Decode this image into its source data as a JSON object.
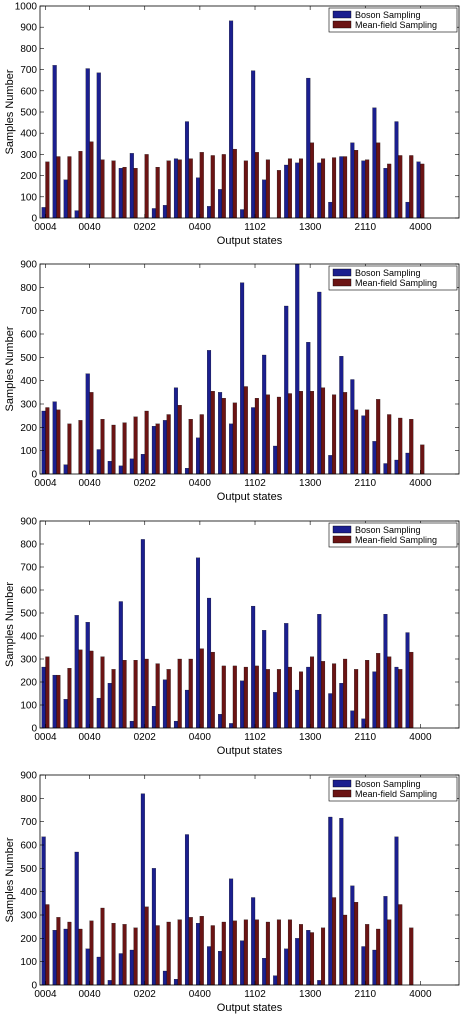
{
  "colors": {
    "boson": "#1b1f8f",
    "meanfield": "#6b1414"
  },
  "chart_data": [
    {
      "type": "bar",
      "xlabel": "Output states",
      "ylabel": "Samples Number",
      "ylim": [
        0,
        1000
      ],
      "yticks": [
        0,
        100,
        200,
        300,
        400,
        500,
        600,
        700,
        800,
        900,
        1000
      ],
      "xtick_labels": [
        "0004",
        "0040",
        "0202",
        "0400",
        "1102",
        "1300",
        "2110",
        "4000"
      ],
      "xtick_index": [
        0,
        4,
        9,
        14,
        19,
        24,
        29,
        34
      ],
      "n_categories": 38,
      "legend_position": "top-right",
      "series": [
        {
          "name": "Boson Sampling",
          "values": [
            50,
            720,
            180,
            35,
            705,
            685,
            0,
            235,
            305,
            0,
            45,
            60,
            280,
            455,
            190,
            55,
            135,
            930,
            40,
            695,
            180,
            0,
            250,
            260,
            660,
            260,
            75,
            290,
            355,
            270,
            520,
            235,
            455,
            75,
            265,
            0,
            0,
            0
          ]
        },
        {
          "name": "Mean-field Sampling",
          "values": [
            265,
            290,
            290,
            315,
            360,
            275,
            270,
            240,
            235,
            300,
            240,
            270,
            275,
            280,
            310,
            295,
            300,
            325,
            270,
            310,
            275,
            225,
            280,
            280,
            355,
            280,
            285,
            290,
            320,
            275,
            355,
            255,
            295,
            295,
            255,
            0,
            0,
            0
          ]
        }
      ]
    },
    {
      "type": "bar",
      "xlabel": "Output states",
      "ylabel": "Samples Number",
      "ylim": [
        0,
        900
      ],
      "yticks": [
        0,
        100,
        200,
        300,
        400,
        500,
        600,
        700,
        800,
        900
      ],
      "xtick_labels": [
        "0004",
        "0040",
        "0202",
        "0400",
        "1102",
        "1300",
        "2110",
        "4000"
      ],
      "xtick_index": [
        0,
        4,
        9,
        14,
        19,
        24,
        29,
        34
      ],
      "n_categories": 38,
      "legend_position": "top-right",
      "series": [
        {
          "name": "Boson Sampling",
          "values": [
            270,
            310,
            40,
            0,
            430,
            105,
            55,
            35,
            65,
            85,
            205,
            230,
            370,
            25,
            155,
            530,
            350,
            215,
            820,
            285,
            510,
            120,
            720,
            900,
            565,
            780,
            80,
            505,
            405,
            250,
            140,
            45,
            60,
            90,
            0,
            0,
            0,
            0
          ]
        },
        {
          "name": "Mean-field Sampling",
          "values": [
            285,
            275,
            215,
            230,
            350,
            235,
            210,
            220,
            245,
            270,
            215,
            255,
            295,
            235,
            255,
            355,
            325,
            305,
            375,
            325,
            340,
            330,
            345,
            355,
            355,
            370,
            340,
            350,
            275,
            275,
            320,
            255,
            240,
            235,
            125,
            0,
            0,
            0
          ]
        }
      ]
    },
    {
      "type": "bar",
      "xlabel": "Output states",
      "ylabel": "Samples Number",
      "ylim": [
        0,
        900
      ],
      "yticks": [
        0,
        100,
        200,
        300,
        400,
        500,
        600,
        700,
        800,
        900
      ],
      "xtick_labels": [
        "0004",
        "0040",
        "0202",
        "0400",
        "1102",
        "1300",
        "2110",
        "4000"
      ],
      "xtick_index": [
        0,
        4,
        9,
        14,
        19,
        24,
        29,
        34
      ],
      "n_categories": 38,
      "legend_position": "top-right",
      "series": [
        {
          "name": "Boson Sampling",
          "values": [
            265,
            230,
            125,
            490,
            460,
            130,
            195,
            550,
            30,
            820,
            95,
            210,
            30,
            165,
            740,
            565,
            60,
            20,
            205,
            530,
            425,
            155,
            455,
            165,
            265,
            495,
            150,
            195,
            75,
            40,
            245,
            495,
            265,
            415,
            0,
            0,
            0,
            0
          ]
        },
        {
          "name": "Mean-field Sampling",
          "values": [
            310,
            230,
            260,
            340,
            335,
            310,
            255,
            295,
            295,
            300,
            280,
            255,
            300,
            300,
            345,
            330,
            270,
            270,
            265,
            270,
            255,
            255,
            265,
            245,
            310,
            290,
            280,
            300,
            255,
            295,
            325,
            310,
            255,
            330,
            0,
            0,
            0,
            0
          ]
        }
      ]
    },
    {
      "type": "bar",
      "xlabel": "Output states",
      "ylabel": "Samples Number",
      "ylim": [
        0,
        900
      ],
      "yticks": [
        0,
        100,
        200,
        300,
        400,
        500,
        600,
        700,
        800,
        900
      ],
      "xtick_labels": [
        "0004",
        "0040",
        "0202",
        "0400",
        "1102",
        "1300",
        "2110",
        "4000"
      ],
      "xtick_index": [
        0,
        4,
        9,
        14,
        19,
        24,
        29,
        34
      ],
      "n_categories": 38,
      "legend_position": "top-right",
      "series": [
        {
          "name": "Boson Sampling",
          "values": [
            635,
            235,
            240,
            570,
            155,
            120,
            20,
            135,
            150,
            820,
            500,
            60,
            25,
            645,
            265,
            165,
            145,
            455,
            190,
            375,
            115,
            40,
            155,
            200,
            235,
            20,
            720,
            715,
            425,
            165,
            150,
            380,
            635,
            0,
            0,
            0,
            0,
            0
          ]
        },
        {
          "name": "Mean-field Sampling",
          "values": [
            345,
            290,
            270,
            240,
            275,
            330,
            265,
            260,
            245,
            335,
            255,
            270,
            280,
            290,
            295,
            255,
            270,
            275,
            280,
            280,
            270,
            280,
            280,
            260,
            225,
            245,
            375,
            300,
            355,
            260,
            240,
            280,
            345,
            245,
            0,
            0,
            0,
            0
          ]
        }
      ]
    }
  ]
}
